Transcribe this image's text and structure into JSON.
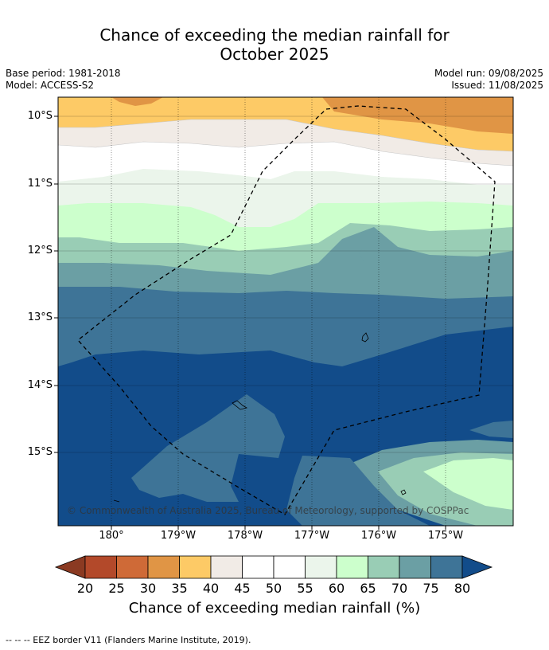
{
  "title_line1": "Chance of exceeding the median rainfall for",
  "title_line2": "October 2025",
  "base_period": "Base period: 1981-2018",
  "model": "Model: ACCESS-S2",
  "model_run": "Model run: 09/08/2025",
  "issued": "Issued: 11/08/2025",
  "lat_labels": [
    "10°S",
    "11°S",
    "12°S",
    "13°S",
    "14°S",
    "15°S"
  ],
  "lon_labels": [
    "180°",
    "179°W",
    "178°W",
    "177°W",
    "176°W",
    "175°W"
  ],
  "copyright": "© Commonwealth of Australia 2025, Bureau of Meteorology, supported by COSPPac",
  "colorbar": {
    "ticks": [
      "20",
      "25",
      "30",
      "35",
      "40",
      "45",
      "50",
      "55",
      "60",
      "65",
      "70",
      "75",
      "80"
    ],
    "colors": [
      "#8b3a22",
      "#b3492a",
      "#cf6a37",
      "#e09545",
      "#fdca66",
      "#f1ebe6",
      "#ffffff",
      "#ffffff",
      "#ebf5eb",
      "#ccffcc",
      "#99cdb5",
      "#6b9fa4",
      "#3e7497",
      "#124c8a"
    ],
    "label": "Chance of exceeding median rainfall (%)"
  },
  "footer": "--  --  -- EEZ border V11 (Flanders Marine Institute, 2019)."
}
